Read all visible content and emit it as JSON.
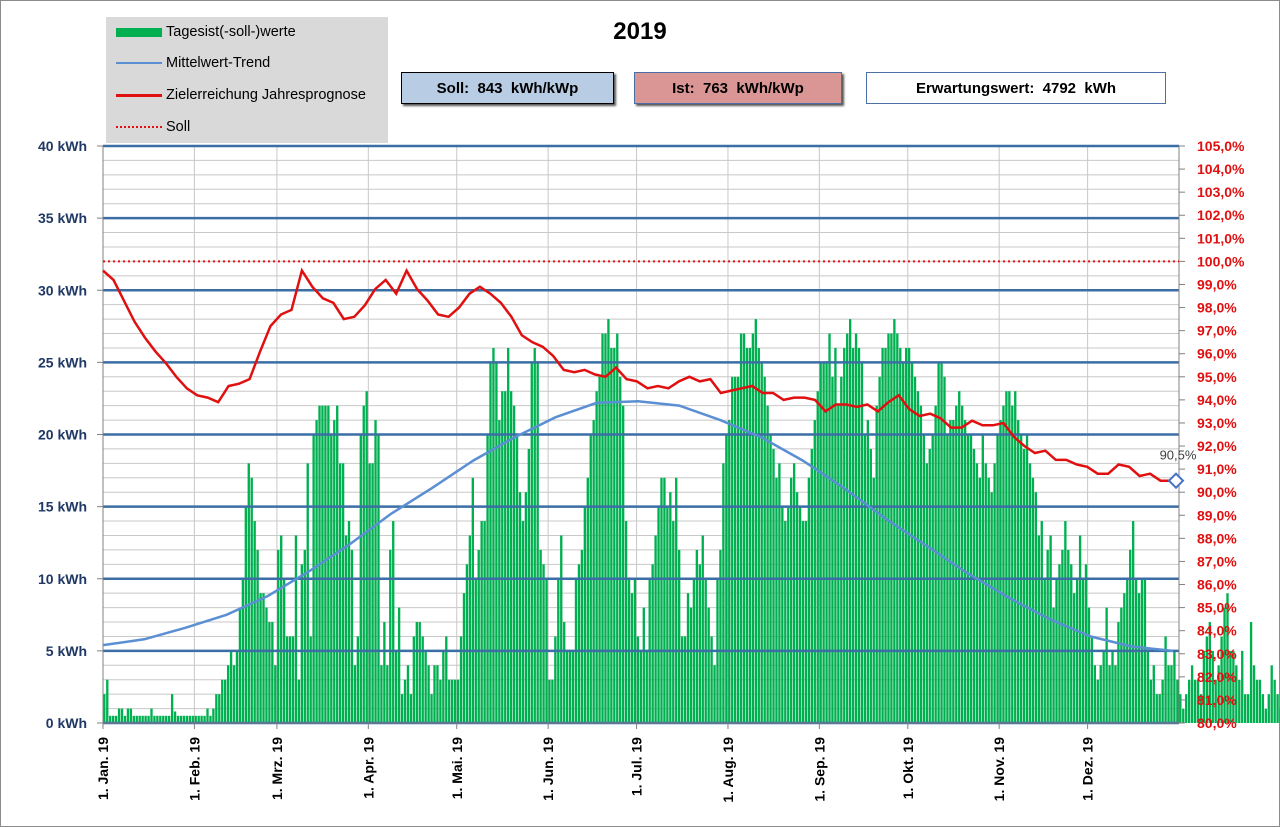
{
  "title": "2019",
  "legend": [
    {
      "label": "Tagesist(-soll-)werte",
      "kind": "bar",
      "color": "#00b050"
    },
    {
      "label": "Mittelwert-Trend",
      "kind": "line",
      "color": "#5b8fd4"
    },
    {
      "label": "Zielerreichung Jahresprognose",
      "kind": "line",
      "color": "#e01010"
    },
    {
      "label": "Soll",
      "kind": "dotted",
      "color": "#e01010"
    }
  ],
  "boxes": {
    "soll": "Soll:  843  kWh/kWp",
    "ist": "Ist:  763  kWh/kWp",
    "erwartung": "Erwartungswert:  4792  kWh"
  },
  "colors": {
    "bars": "#00b050",
    "trend": "#5b8fd4",
    "forecast": "#e01010",
    "left_axis_text": "#1f3864",
    "right_axis_text": "#e01010",
    "major_grid": "#3a6ea5",
    "soll_box": "#b8cce4",
    "ist_box": "#d99694"
  },
  "chart_data": {
    "type": "bar",
    "x_tick_labels": [
      "1. Jan. 19",
      "1. Feb. 19",
      "1. Mrz. 19",
      "1. Apr. 19",
      "1. Mai. 19",
      "1. Jun. 19",
      "1. Jul. 19",
      "1. Aug. 19",
      "1. Sep. 19",
      "1. Okt. 19",
      "1. Nov. 19",
      "1. Dez. 19"
    ],
    "y_left": {
      "min": 0,
      "max": 40,
      "ticks": [
        "0 kWh",
        "5 kWh",
        "10 kWh",
        "15 kWh",
        "20 kWh",
        "25 kWh",
        "30 kWh",
        "35 kWh",
        "40 kWh"
      ]
    },
    "y_right": {
      "min": 80,
      "max": 105,
      "ticks": [
        "80,0%",
        "81,0%",
        "82,0%",
        "83,0%",
        "84,0%",
        "85,0%",
        "86,0%",
        "87,0%",
        "88,0%",
        "89,0%",
        "90,0%",
        "91,0%",
        "92,0%",
        "93,0%",
        "94,0%",
        "95,0%",
        "96,0%",
        "97,0%",
        "98,0%",
        "99,0%",
        "100,0%",
        "101,0%",
        "102,0%",
        "103,0%",
        "104,0%",
        "105,0%"
      ]
    },
    "grid": true,
    "daily_values_kwh": [
      2,
      3,
      0.5,
      0.5,
      0.5,
      1,
      1,
      0.5,
      1,
      1,
      0.5,
      0.5,
      0.5,
      0.5,
      0.5,
      0.5,
      1,
      0.5,
      0.5,
      0.5,
      0.5,
      0.5,
      0.5,
      2,
      0.8,
      0.5,
      0.5,
      0.5,
      0.5,
      0.5,
      0.5,
      0.5,
      0.5,
      0.5,
      0.5,
      1,
      0.5,
      1,
      2,
      2,
      3,
      3,
      4,
      5,
      4,
      5,
      8,
      10,
      15,
      18,
      17,
      14,
      12,
      9,
      9,
      8,
      7,
      7,
      4,
      12,
      13,
      10,
      6,
      6,
      6,
      13,
      3,
      11,
      12,
      18,
      6,
      20,
      21,
      22,
      22,
      22,
      22,
      20,
      21,
      22,
      18,
      18,
      13,
      14,
      12,
      4,
      6,
      20,
      22,
      23,
      18,
      18,
      21,
      20,
      4,
      7,
      4,
      12,
      14,
      5,
      8,
      2,
      3,
      4,
      2,
      6,
      7,
      7,
      6,
      5,
      4,
      2,
      4,
      4,
      3,
      5,
      6,
      3,
      3,
      3,
      3,
      6,
      9,
      11,
      13,
      17,
      10,
      12,
      14,
      14,
      20,
      25,
      26,
      25,
      21,
      23,
      23,
      26,
      23,
      22,
      20,
      16,
      14,
      16,
      19,
      25,
      26,
      25,
      12,
      11,
      10,
      3,
      3,
      6,
      10,
      13,
      7,
      5,
      5,
      5,
      10,
      11,
      12,
      15,
      17,
      20,
      21,
      23,
      24,
      27,
      27,
      28,
      26,
      26,
      27,
      24,
      22,
      14,
      10,
      9,
      10,
      6,
      5,
      8,
      5,
      10,
      11,
      13,
      15,
      17,
      17,
      15,
      16,
      14,
      17,
      12,
      6,
      6,
      9,
      8,
      10,
      12,
      11,
      13,
      10,
      8,
      6,
      4,
      10,
      12,
      18,
      20,
      21,
      24,
      24,
      24,
      27,
      27,
      26,
      26,
      27,
      28,
      26,
      25,
      24,
      22,
      20,
      19,
      17,
      18,
      15,
      14,
      15,
      17,
      18,
      16,
      15,
      14,
      14,
      17,
      19,
      21,
      23,
      25,
      25,
      25,
      27,
      24,
      26,
      22,
      24,
      26,
      27,
      28,
      26,
      27,
      26,
      25,
      20,
      21,
      19,
      17,
      22,
      24,
      26,
      26,
      27,
      27,
      28,
      27,
      26,
      25,
      26,
      26,
      25,
      24,
      23,
      22,
      20,
      18,
      19,
      20,
      22,
      25,
      25,
      24,
      20,
      21,
      21,
      22,
      23,
      22,
      21,
      20,
      20,
      19,
      18,
      17,
      20,
      18,
      17,
      16,
      18,
      20,
      21,
      22,
      23,
      23,
      22,
      23,
      21,
      20,
      19,
      20,
      18,
      17,
      16,
      13,
      14,
      10,
      12,
      13,
      8,
      10,
      11,
      12,
      14,
      12,
      11,
      9,
      10,
      13,
      10,
      11,
      8,
      6,
      4,
      3,
      4,
      5,
      8,
      4,
      5,
      4,
      7,
      8,
      9,
      10,
      12,
      14,
      10,
      9,
      10,
      10,
      5,
      3,
      4,
      2,
      2,
      3,
      6,
      4,
      4,
      5,
      3,
      2,
      1,
      2,
      3,
      4,
      3,
      3,
      2,
      5,
      6,
      7,
      5,
      3,
      4,
      6,
      8,
      9,
      5,
      5,
      4,
      3,
      5,
      2,
      2,
      7,
      4,
      3,
      3,
      2,
      1,
      2,
      4,
      3,
      2,
      1,
      1,
      1,
      2,
      4,
      3,
      4,
      5,
      4,
      4,
      6,
      6,
      8,
      10,
      11,
      11,
      8,
      6,
      4,
      4,
      4,
      4,
      5,
      5,
      4,
      3,
      2,
      2,
      1,
      2,
      3,
      3,
      2,
      3,
      4,
      3,
      2,
      2,
      3,
      4,
      5,
      6,
      5,
      5,
      4,
      14,
      14,
      10
    ],
    "trend_kwh": [
      5.4,
      5.8,
      6.6,
      7.5,
      8.8,
      10.5,
      12.4,
      14.5,
      16.3,
      18.2,
      19.8,
      21.2,
      22.2,
      22.3,
      22.0,
      21.0,
      19.8,
      18.2,
      16.3,
      14.2,
      12.3,
      10.4,
      8.7,
      7.2,
      6.0,
      5.3,
      5.0
    ],
    "forecast_percent": [
      99.6,
      99.2,
      98.3,
      97.4,
      96.7,
      96.1,
      95.6,
      95.0,
      94.5,
      94.2,
      94.1,
      93.9,
      94.6,
      94.7,
      94.9,
      96.1,
      97.2,
      97.7,
      97.9,
      99.6,
      98.9,
      98.4,
      98.2,
      97.5,
      97.6,
      98.1,
      98.8,
      99.2,
      98.6,
      99.6,
      98.8,
      98.3,
      97.7,
      97.6,
      98.0,
      98.6,
      98.9,
      98.6,
      98.2,
      97.6,
      96.8,
      96.5,
      96.3,
      95.9,
      95.3,
      95.2,
      95.3,
      95.1,
      95.0,
      95.4,
      94.9,
      94.8,
      94.5,
      94.6,
      94.5,
      94.8,
      95.0,
      94.8,
      94.9,
      94.3,
      94.4,
      94.5,
      94.6,
      94.3,
      94.3,
      94.0,
      94.1,
      94.1,
      94.0,
      93.5,
      93.8,
      93.8,
      93.7,
      93.8,
      93.5,
      93.9,
      94.2,
      93.6,
      93.3,
      93.4,
      93.2,
      92.8,
      92.8,
      93.1,
      92.9,
      92.9,
      93.0,
      92.4,
      92.0,
      91.7,
      91.8,
      91.4,
      91.4,
      91.2,
      91.1,
      90.8,
      90.8,
      91.2,
      91.1,
      90.7,
      90.8,
      90.5,
      90.5
    ],
    "soll_percent": 100,
    "end_label": "90,5%",
    "end_value_percent": 90.5
  }
}
